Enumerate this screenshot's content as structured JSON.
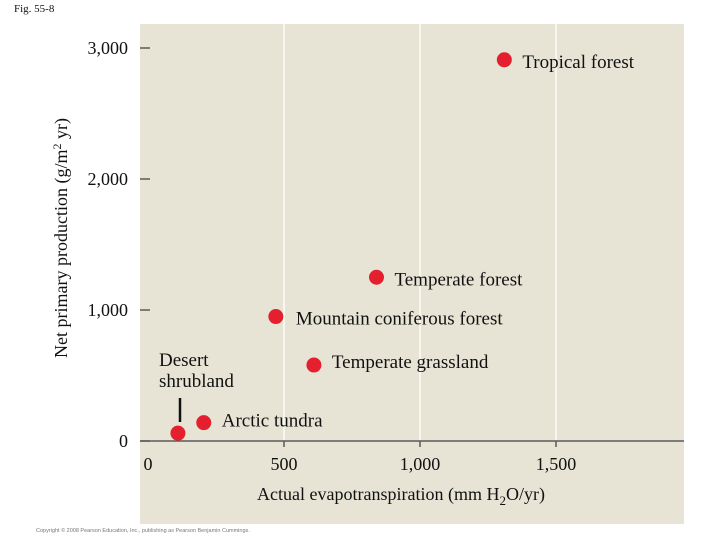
{
  "figure_label": "Fig. 55-8",
  "copyright": "Copyright © 2008 Pearson Education, Inc., publishing as Pearson Benjamin Cummings.",
  "chart_data": {
    "type": "scatter",
    "title": "",
    "xlabel": "Actual evapotranspiration (mm H2O/yr)",
    "xlabel_parts": {
      "before": "Actual evapotranspiration (mm H",
      "sub": "2",
      "after": "O/yr)"
    },
    "ylabel": "Net primary production (g/m2 yr)",
    "ylabel_parts": {
      "before": "Net primary production (g/m",
      "sup": "2",
      "after": " yr)"
    },
    "xlim": [
      0,
      1900
    ],
    "ylim": [
      0,
      3000
    ],
    "x_ticks": [
      {
        "value": 0,
        "label": "0"
      },
      {
        "value": 500,
        "label": "500"
      },
      {
        "value": 1000,
        "label": "1,000"
      },
      {
        "value": 1500,
        "label": "1,500"
      }
    ],
    "y_ticks": [
      {
        "value": 0,
        "label": "0"
      },
      {
        "value": 1000,
        "label": "1,000"
      },
      {
        "value": 2000,
        "label": "2,000"
      },
      {
        "value": 3000,
        "label": "3,000"
      }
    ],
    "x_gridlines": [
      500,
      1000,
      1500
    ],
    "plot_background": "#e7e4d6",
    "gridline_color": "#f7f6ef",
    "marker_color": "#e5202e",
    "points": [
      {
        "label": "Tropical forest",
        "x": 1310,
        "y": 2910
      },
      {
        "label": "Temperate forest",
        "x": 840,
        "y": 1250
      },
      {
        "label": "Mountain coniferous forest",
        "x": 470,
        "y": 950
      },
      {
        "label": "Temperate grassland",
        "x": 610,
        "y": 580
      },
      {
        "label": "Desert shrubland",
        "x": 110,
        "y": 60
      },
      {
        "label": "Arctic tundra",
        "x": 205,
        "y": 140
      }
    ]
  }
}
